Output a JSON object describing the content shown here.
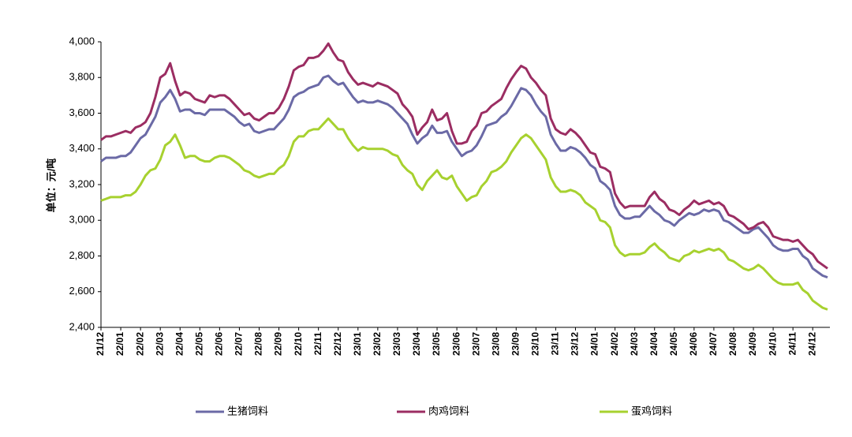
{
  "chart_data": {
    "type": "line",
    "y_label": "单位：元/吨",
    "categories": [
      "21/12",
      null,
      null,
      null,
      "22/01",
      null,
      null,
      null,
      "22/02",
      null,
      null,
      null,
      "22/03",
      null,
      null,
      null,
      "22/04",
      null,
      null,
      null,
      "22/05",
      null,
      null,
      null,
      "22/06",
      null,
      null,
      null,
      "22/07",
      null,
      null,
      null,
      "22/08",
      null,
      null,
      null,
      "22/09",
      null,
      null,
      null,
      "22/10",
      null,
      null,
      null,
      "22/11",
      null,
      null,
      null,
      "22/12",
      null,
      null,
      null,
      "23/01",
      null,
      null,
      null,
      "23/02",
      null,
      null,
      null,
      "23/03",
      null,
      null,
      null,
      "23/04",
      null,
      null,
      null,
      "23/05",
      null,
      null,
      null,
      "23/06",
      null,
      null,
      null,
      "23/07",
      null,
      null,
      null,
      "23/08",
      null,
      null,
      null,
      "23/09",
      null,
      null,
      null,
      "23/10",
      null,
      null,
      null,
      "23/11",
      null,
      null,
      null,
      "23/12",
      null,
      null,
      null,
      "24/01",
      null,
      null,
      null,
      "24/02",
      null,
      null,
      null,
      "24/03",
      null,
      null,
      null,
      "24/04",
      null,
      null,
      null,
      "24/05",
      null,
      null,
      null,
      "24/06",
      null,
      null,
      null,
      "24/07",
      null,
      null,
      null,
      "24/08",
      null,
      null,
      null,
      "24/09",
      null,
      null,
      null,
      "24/10",
      null,
      null,
      null,
      "24/11",
      null,
      null,
      null,
      "24/12",
      null,
      null,
      null
    ],
    "series": [
      {
        "name": "生猪饲料",
        "color": "#6b6aa6",
        "values": [
          3330,
          3350,
          3350,
          3350,
          3360,
          3360,
          3380,
          3420,
          3460,
          3480,
          3530,
          3580,
          3660,
          3690,
          3730,
          3680,
          3610,
          3620,
          3620,
          3600,
          3600,
          3590,
          3620,
          3620,
          3620,
          3620,
          3600,
          3580,
          3550,
          3530,
          3540,
          3500,
          3490,
          3500,
          3510,
          3510,
          3540,
          3570,
          3620,
          3690,
          3710,
          3720,
          3740,
          3750,
          3760,
          3800,
          3810,
          3780,
          3760,
          3770,
          3730,
          3690,
          3660,
          3670,
          3660,
          3660,
          3670,
          3660,
          3650,
          3630,
          3600,
          3570,
          3540,
          3480,
          3430,
          3460,
          3480,
          3530,
          3490,
          3490,
          3500,
          3440,
          3400,
          3360,
          3380,
          3390,
          3420,
          3470,
          3530,
          3540,
          3550,
          3580,
          3600,
          3640,
          3690,
          3740,
          3730,
          3700,
          3650,
          3610,
          3580,
          3480,
          3430,
          3390,
          3390,
          3410,
          3400,
          3380,
          3350,
          3310,
          3290,
          3220,
          3200,
          3170,
          3080,
          3030,
          3010,
          3010,
          3020,
          3020,
          3050,
          3080,
          3050,
          3030,
          3000,
          2990,
          2970,
          3000,
          3020,
          3040,
          3030,
          3040,
          3060,
          3050,
          3060,
          3050,
          3000,
          2990,
          2970,
          2950,
          2930,
          2930,
          2950,
          2960,
          2930,
          2900,
          2860,
          2840,
          2830,
          2830,
          2840,
          2840,
          2800,
          2780,
          2730,
          2710,
          2690,
          2680
        ]
      },
      {
        "name": "肉鸡饲料",
        "color": "#9b2d62",
        "values": [
          3450,
          3470,
          3470,
          3480,
          3490,
          3500,
          3490,
          3520,
          3530,
          3550,
          3600,
          3690,
          3800,
          3820,
          3880,
          3780,
          3700,
          3720,
          3710,
          3680,
          3670,
          3660,
          3700,
          3690,
          3700,
          3700,
          3680,
          3650,
          3620,
          3590,
          3600,
          3570,
          3560,
          3580,
          3600,
          3600,
          3630,
          3680,
          3750,
          3840,
          3860,
          3870,
          3910,
          3910,
          3920,
          3950,
          3990,
          3940,
          3900,
          3890,
          3830,
          3790,
          3760,
          3770,
          3760,
          3750,
          3770,
          3760,
          3750,
          3730,
          3710,
          3650,
          3620,
          3580,
          3480,
          3520,
          3550,
          3620,
          3560,
          3570,
          3600,
          3500,
          3430,
          3430,
          3440,
          3500,
          3530,
          3600,
          3610,
          3640,
          3660,
          3680,
          3740,
          3790,
          3830,
          3865,
          3850,
          3800,
          3770,
          3730,
          3700,
          3570,
          3510,
          3490,
          3480,
          3510,
          3490,
          3460,
          3420,
          3380,
          3370,
          3300,
          3290,
          3270,
          3150,
          3100,
          3070,
          3080,
          3080,
          3080,
          3080,
          3130,
          3160,
          3120,
          3100,
          3060,
          3050,
          3030,
          3060,
          3080,
          3110,
          3090,
          3100,
          3110,
          3090,
          3100,
          3080,
          3030,
          3020,
          3000,
          2980,
          2950,
          2960,
          2980,
          2990,
          2960,
          2910,
          2900,
          2890,
          2890,
          2880,
          2890,
          2860,
          2830,
          2810,
          2770,
          2750,
          2730
        ]
      },
      {
        "name": "蛋鸡饲料",
        "color": "#a7d12f",
        "values": [
          3110,
          3120,
          3130,
          3130,
          3130,
          3140,
          3140,
          3160,
          3200,
          3250,
          3280,
          3290,
          3340,
          3420,
          3440,
          3480,
          3420,
          3350,
          3360,
          3360,
          3340,
          3330,
          3330,
          3350,
          3360,
          3360,
          3350,
          3330,
          3310,
          3280,
          3270,
          3250,
          3240,
          3250,
          3260,
          3260,
          3290,
          3310,
          3360,
          3440,
          3470,
          3470,
          3500,
          3510,
          3510,
          3540,
          3570,
          3540,
          3510,
          3510,
          3460,
          3420,
          3390,
          3410,
          3400,
          3400,
          3400,
          3400,
          3390,
          3370,
          3360,
          3310,
          3280,
          3260,
          3200,
          3170,
          3220,
          3250,
          3280,
          3240,
          3230,
          3250,
          3190,
          3150,
          3110,
          3130,
          3140,
          3190,
          3220,
          3270,
          3280,
          3300,
          3330,
          3380,
          3420,
          3460,
          3480,
          3460,
          3420,
          3380,
          3340,
          3240,
          3190,
          3160,
          3160,
          3170,
          3160,
          3140,
          3100,
          3080,
          3060,
          3000,
          2990,
          2960,
          2860,
          2820,
          2800,
          2810,
          2810,
          2810,
          2820,
          2850,
          2870,
          2840,
          2820,
          2790,
          2780,
          2770,
          2800,
          2810,
          2830,
          2820,
          2830,
          2840,
          2830,
          2840,
          2820,
          2780,
          2770,
          2750,
          2730,
          2720,
          2730,
          2750,
          2730,
          2700,
          2670,
          2650,
          2640,
          2640,
          2640,
          2650,
          2610,
          2590,
          2550,
          2530,
          2510,
          2500
        ]
      }
    ],
    "ylim": [
      2400,
      4000
    ],
    "yticks": [
      {
        "value": 2400,
        "label": "2,400"
      },
      {
        "value": 2600,
        "label": "2,600"
      },
      {
        "value": 2800,
        "label": "2,800"
      },
      {
        "value": 3000,
        "label": "3,000"
      },
      {
        "value": 3200,
        "label": "3,200"
      },
      {
        "value": 3400,
        "label": "3,400"
      },
      {
        "value": 3600,
        "label": "3,600"
      },
      {
        "value": 3800,
        "label": "3,800"
      },
      {
        "value": 4000,
        "label": "4,000"
      }
    ],
    "grid": false
  }
}
